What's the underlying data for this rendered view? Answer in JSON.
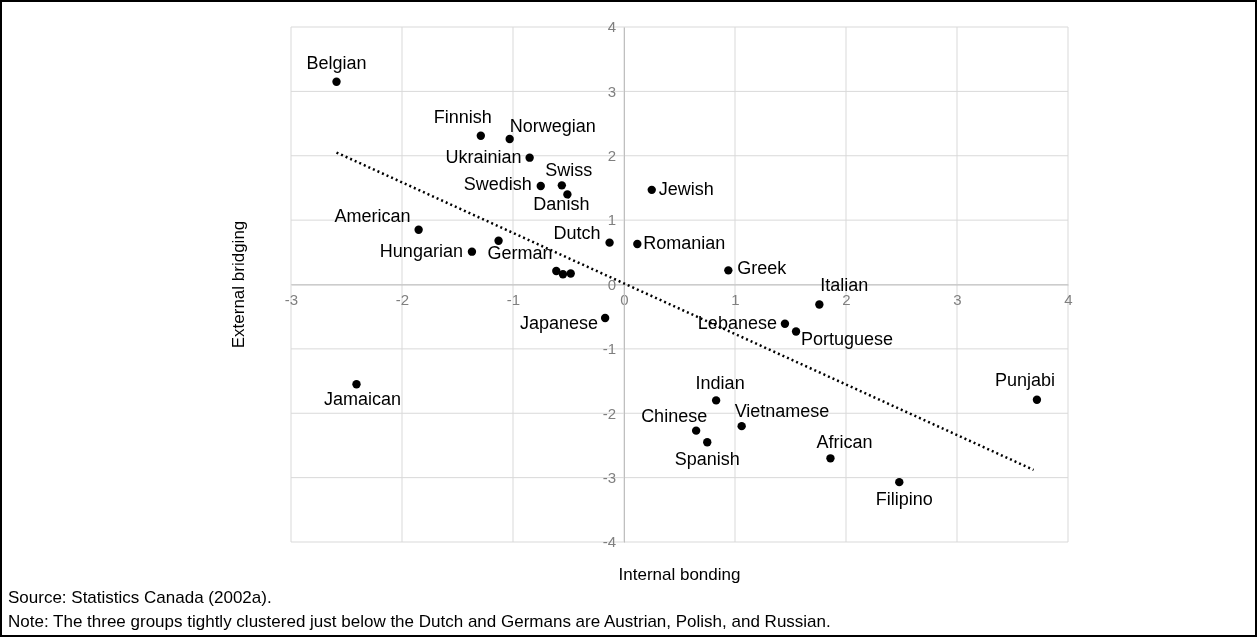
{
  "chart_data": {
    "type": "scatter",
    "xlabel": "Internal bonding",
    "ylabel": "External bridging",
    "xlim": [
      -3,
      4
    ],
    "ylim": [
      -4,
      4
    ],
    "xticks": [
      -3,
      -2,
      -1,
      0,
      1,
      2,
      3,
      4
    ],
    "yticks": [
      -4,
      -3,
      -2,
      -1,
      0,
      1,
      2,
      3,
      4
    ],
    "grid": true,
    "marker": "circle",
    "series": [
      {
        "color": "#000000",
        "x": [
          -2.59,
          -1.29,
          -1.03,
          -0.85,
          -0.75,
          -0.56,
          -0.51,
          0.25,
          -1.85,
          -0.13,
          0.12,
          -1.37,
          -1.13,
          0.94,
          1.76,
          -0.17,
          1.45,
          1.55,
          -2.41,
          0.83,
          3.72,
          0.65,
          1.06,
          0.75,
          1.86,
          2.48,
          -0.61,
          -0.55,
          -0.48
        ],
        "values": [
          3.15,
          2.31,
          2.26,
          1.97,
          1.53,
          1.54,
          1.4,
          1.47,
          0.85,
          0.65,
          0.63,
          0.51,
          0.68,
          0.22,
          -0.31,
          -0.52,
          -0.61,
          -0.73,
          -1.55,
          -1.8,
          -1.79,
          -2.27,
          -2.2,
          -2.45,
          -2.7,
          -3.07,
          0.21,
          0.16,
          0.17
        ]
      },
      {
        "type": "line",
        "color": "#000000",
        "line_style": "dotted",
        "marker": "none",
        "x": [
          -2.59,
          3.69
        ],
        "values": [
          2.05,
          -2.88
        ]
      }
    ],
    "annotations": [
      {
        "text": "Belgian",
        "x": -2.59,
        "y": 3.15
      },
      {
        "text": "Finnish",
        "x": -1.29,
        "y": 2.31
      },
      {
        "text": "Norwegian",
        "x": -1.03,
        "y": 2.26
      },
      {
        "text": "Ukrainian",
        "x": -0.85,
        "y": 1.97
      },
      {
        "text": "Swedish",
        "x": -0.75,
        "y": 1.53
      },
      {
        "text": "Swiss",
        "x": -0.56,
        "y": 1.54
      },
      {
        "text": "Danish",
        "x": -0.51,
        "y": 1.4
      },
      {
        "text": "Jewish",
        "x": 0.25,
        "y": 1.47
      },
      {
        "text": "American",
        "x": -1.85,
        "y": 0.85
      },
      {
        "text": "Dutch",
        "x": -0.13,
        "y": 0.65
      },
      {
        "text": "Romanian",
        "x": 0.12,
        "y": 0.63
      },
      {
        "text": "Hungarian",
        "x": -1.37,
        "y": 0.51
      },
      {
        "text": "German",
        "x": -1.13,
        "y": 0.68
      },
      {
        "text": "Greek",
        "x": 0.94,
        "y": 0.22
      },
      {
        "text": "Italian",
        "x": 1.76,
        "y": -0.31
      },
      {
        "text": "Japanese",
        "x": -0.17,
        "y": -0.52
      },
      {
        "text": "Lebanese",
        "x": 1.45,
        "y": -0.61
      },
      {
        "text": "Portuguese",
        "x": 1.55,
        "y": -0.73
      },
      {
        "text": "Jamaican",
        "x": -2.41,
        "y": -1.55
      },
      {
        "text": "Indian",
        "x": 0.83,
        "y": -1.8
      },
      {
        "text": "Punjabi",
        "x": 3.72,
        "y": -1.79
      },
      {
        "text": "Chinese",
        "x": 0.65,
        "y": -2.27
      },
      {
        "text": "Vietnamese",
        "x": 1.06,
        "y": -2.2
      },
      {
        "text": "Spanish",
        "x": 0.75,
        "y": -2.45
      },
      {
        "text": "African",
        "x": 1.86,
        "y": -2.7
      },
      {
        "text": "Filipino",
        "x": 2.48,
        "y": -3.07
      },
      "Source: Statistics Canada (2002a).",
      "Note: The three groups tightly clustered just below the Dutch and Germans are Austrian, Polish, and Russian."
    ]
  }
}
